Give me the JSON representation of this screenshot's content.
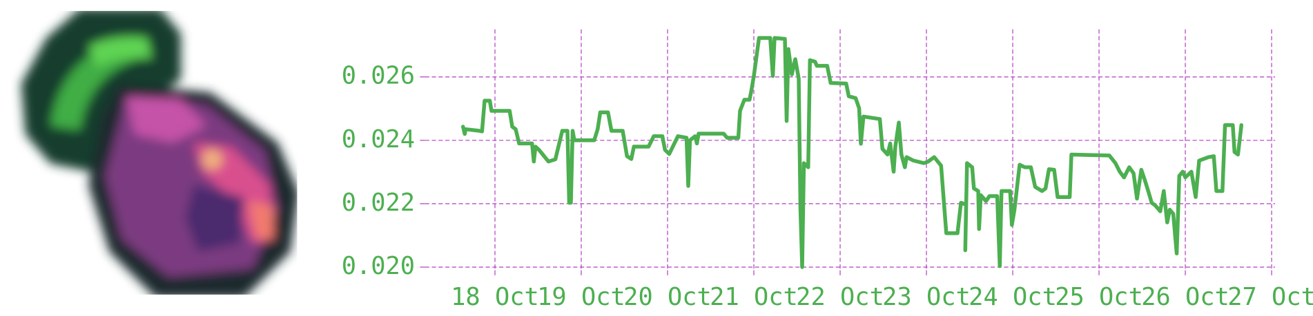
{
  "chart_data": {
    "type": "line",
    "color": "#4caf50",
    "grid": true,
    "grid_color": "#b23ec2",
    "label_color": "#4caf50",
    "xlim": [
      17.19,
      27.04
    ],
    "xticks": [
      {
        "value": 18,
        "label": "18 Oct"
      },
      {
        "value": 19,
        "label": "19 Oct"
      },
      {
        "value": 20,
        "label": "20 Oct"
      },
      {
        "value": 21,
        "label": "21 Oct"
      },
      {
        "value": 22,
        "label": "22 Oct"
      },
      {
        "value": 23,
        "label": "23 Oct"
      },
      {
        "value": 24,
        "label": "24 Oct"
      },
      {
        "value": 25,
        "label": "25 Oct"
      },
      {
        "value": 26,
        "label": "26 Oct"
      },
      {
        "value": 27,
        "label": "27 Oct"
      }
    ],
    "ylim": [
      0.0199,
      0.0275
    ],
    "yticks": [
      {
        "value": 0.02,
        "label": "0.020"
      },
      0.022,
      0.024,
      0.026
    ],
    "x": [
      17.63,
      17.65,
      17.66,
      17.82,
      17.85,
      17.88,
      17.94,
      17.96,
      18.17,
      18.2,
      18.24,
      18.28,
      18.43,
      18.45,
      18.47,
      18.51,
      18.62,
      18.7,
      18.78,
      18.84,
      18.86,
      18.88,
      18.9,
      18.92,
      19.15,
      19.19,
      19.22,
      19.31,
      19.35,
      19.48,
      19.53,
      19.58,
      19.61,
      19.78,
      19.84,
      19.94,
      19.97,
      20.02,
      20.12,
      20.22,
      20.24,
      20.26,
      20.32,
      20.34,
      20.36,
      20.65,
      20.69,
      20.82,
      20.84,
      20.89,
      20.95,
      20.97,
      21.0,
      21.06,
      21.19,
      21.22,
      21.24,
      21.36,
      21.38,
      21.4,
      21.44,
      21.48,
      21.52,
      21.54,
      21.56,
      21.58,
      21.63,
      21.65,
      21.71,
      21.73,
      21.85,
      21.89,
      22.07,
      22.1,
      22.18,
      22.22,
      22.24,
      22.27,
      22.46,
      22.49,
      22.55,
      22.58,
      22.62,
      22.64,
      22.68,
      22.71,
      22.75,
      22.77,
      22.85,
      22.97,
      23.02,
      23.09,
      23.17,
      23.23,
      23.36,
      23.4,
      23.46,
      23.45,
      23.47,
      23.53,
      23.55,
      23.6,
      23.61,
      23.63,
      23.69,
      23.73,
      23.82,
      23.85,
      23.87,
      23.97,
      23.99,
      24.02,
      24.08,
      24.14,
      24.21,
      24.26,
      24.34,
      24.38,
      24.42,
      24.48,
      24.52,
      24.66,
      24.68,
      25.12,
      25.19,
      25.24,
      25.29,
      25.35,
      25.4,
      25.44,
      25.49,
      25.53,
      25.57,
      25.61,
      25.65,
      25.71,
      25.75,
      25.79,
      25.82,
      25.86,
      25.9,
      25.93,
      25.97,
      26.0,
      26.07,
      26.12,
      26.16,
      26.27,
      26.33,
      26.36,
      26.43,
      26.46,
      26.55,
      26.57,
      26.61,
      26.65
    ],
    "values": [
      0.02443,
      0.0242,
      0.02435,
      0.0243,
      0.02428,
      0.02525,
      0.02525,
      0.02493,
      0.02493,
      0.02443,
      0.02435,
      0.0239,
      0.0239,
      0.02333,
      0.0238,
      0.0237,
      0.02333,
      0.0234,
      0.0243,
      0.0243,
      0.02203,
      0.02203,
      0.0243,
      0.024,
      0.024,
      0.02435,
      0.02488,
      0.02488,
      0.0243,
      0.0243,
      0.0235,
      0.02341,
      0.0238,
      0.0238,
      0.02413,
      0.02413,
      0.0237,
      0.02357,
      0.02413,
      0.02408,
      0.02256,
      0.024,
      0.02413,
      0.0239,
      0.02421,
      0.02421,
      0.02408,
      0.02408,
      0.02493,
      0.02528,
      0.02528,
      0.02555,
      0.02603,
      0.02723,
      0.02723,
      0.02603,
      0.02723,
      0.0272,
      0.02461,
      0.02688,
      0.02608,
      0.02656,
      0.02595,
      0.02181,
      0.02,
      0.02328,
      0.02315,
      0.02653,
      0.02648,
      0.02635,
      0.02635,
      0.02581,
      0.02579,
      0.02539,
      0.02533,
      0.02501,
      0.02389,
      0.02475,
      0.02467,
      0.02373,
      0.02355,
      0.0239,
      0.02301,
      0.02381,
      0.02456,
      0.02355,
      0.02315,
      0.02347,
      0.02336,
      0.02328,
      0.02333,
      0.02347,
      0.0232,
      0.02107,
      0.02107,
      0.02203,
      0.02197,
      0.02053,
      0.02328,
      0.02315,
      0.02248,
      0.0224,
      0.0212,
      0.02227,
      0.02208,
      0.02224,
      0.02224,
      0.02003,
      0.0224,
      0.0224,
      0.02133,
      0.02181,
      0.02323,
      0.02315,
      0.02315,
      0.02253,
      0.0224,
      0.02248,
      0.02309,
      0.02307,
      0.02221,
      0.02221,
      0.02355,
      0.02352,
      0.02328,
      0.02301,
      0.02283,
      0.02315,
      0.02296,
      0.02216,
      0.02307,
      0.02275,
      0.0224,
      0.02203,
      0.02195,
      0.02176,
      0.0224,
      0.02141,
      0.02181,
      0.02168,
      0.02043,
      0.02288,
      0.02301,
      0.02283,
      0.02301,
      0.02221,
      0.02336,
      0.02347,
      0.0235,
      0.0224,
      0.0224,
      0.02448,
      0.02448,
      0.02363,
      0.02355,
      0.02448
    ]
  }
}
